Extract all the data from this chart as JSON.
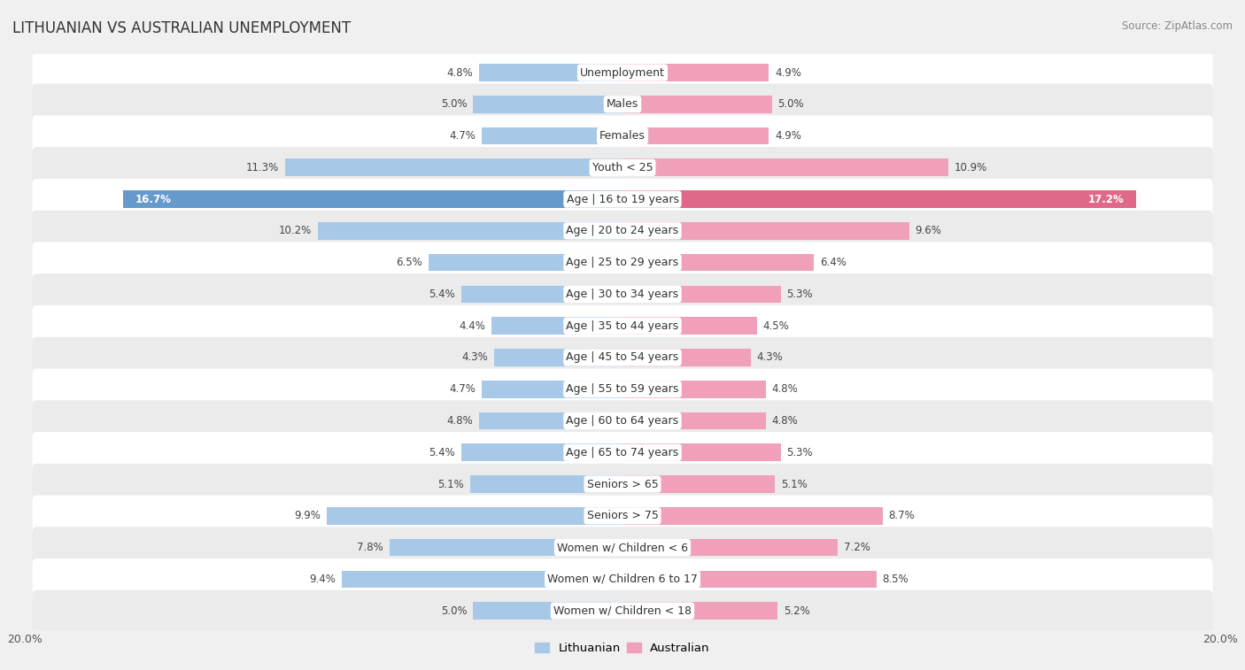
{
  "title": "LITHUANIAN VS AUSTRALIAN UNEMPLOYMENT",
  "source": "Source: ZipAtlas.com",
  "categories": [
    "Unemployment",
    "Males",
    "Females",
    "Youth < 25",
    "Age | 16 to 19 years",
    "Age | 20 to 24 years",
    "Age | 25 to 29 years",
    "Age | 30 to 34 years",
    "Age | 35 to 44 years",
    "Age | 45 to 54 years",
    "Age | 55 to 59 years",
    "Age | 60 to 64 years",
    "Age | 65 to 74 years",
    "Seniors > 65",
    "Seniors > 75",
    "Women w/ Children < 6",
    "Women w/ Children 6 to 17",
    "Women w/ Children < 18"
  ],
  "lithuanian": [
    4.8,
    5.0,
    4.7,
    11.3,
    16.7,
    10.2,
    6.5,
    5.4,
    4.4,
    4.3,
    4.7,
    4.8,
    5.4,
    5.1,
    9.9,
    7.8,
    9.4,
    5.0
  ],
  "australian": [
    4.9,
    5.0,
    4.9,
    10.9,
    17.2,
    9.6,
    6.4,
    5.3,
    4.5,
    4.3,
    4.8,
    4.8,
    5.3,
    5.1,
    8.7,
    7.2,
    8.5,
    5.2
  ],
  "lith_color": "#a8c8e8",
  "aus_color": "#f0a0b8",
  "lith_color_highlight": "#6699cc",
  "aus_color_highlight": "#e06888",
  "max_val": 20.0,
  "bg_row_even": "#ffffff",
  "bg_row_odd": "#ebebeb",
  "title_fontsize": 12,
  "label_fontsize": 9,
  "value_fontsize": 8.5,
  "legend_fontsize": 9.5,
  "axis_label_fontsize": 9
}
